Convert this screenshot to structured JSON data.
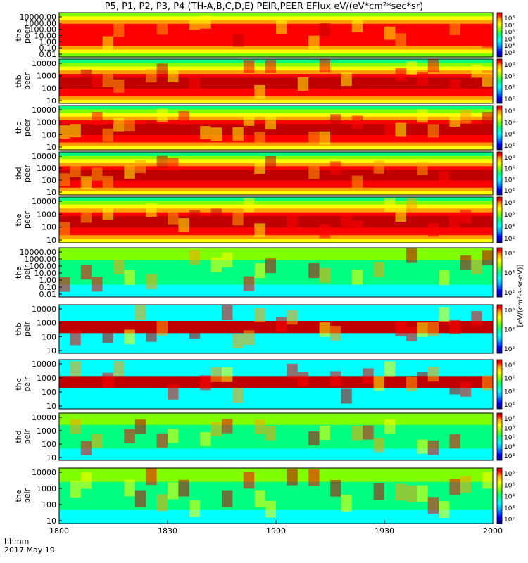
{
  "title": "P5, P1, P2, P3, P4 (TH-A,B,C,D,E) PEIR,PEER EFlux eV/(eV*cm²*sec*sr)",
  "time_axis": {
    "label": "hhmm",
    "date": "2017 May 19",
    "ticks": [
      "1800",
      "1830",
      "1900",
      "1930",
      "2000"
    ]
  },
  "colorbar_label": "[eV/(cm²-s-sr-eV)]",
  "colors": {
    "scale": [
      "#000080",
      "#0000ff",
      "#00a0ff",
      "#00ffff",
      "#00ff80",
      "#80ff00",
      "#ffff00",
      "#ffa000",
      "#ff0000",
      "#c00000"
    ],
    "sensor_trace": "#000000",
    "frame": "#000000"
  },
  "chart_data": [
    {
      "type": "heatmap",
      "probe": "tha",
      "product": "peer",
      "ylabel": [
        "tha",
        "peer"
      ],
      "yticks": [
        "10000.00",
        "1000.00",
        "100.00",
        "10.00",
        "1.00",
        "0.10",
        "0.01"
      ],
      "cb_ticks": [
        "10⁸",
        "10⁷",
        "10⁶",
        "10⁵",
        "10⁴",
        "10³"
      ]
    },
    {
      "type": "heatmap",
      "probe": "thb",
      "product": "peer",
      "ylabel": [
        "thb",
        "peer"
      ],
      "yticks": [
        "10000",
        "1000",
        "100",
        "10"
      ],
      "cb_ticks": [
        "10⁸",
        "10⁶",
        "10⁴",
        "10²"
      ]
    },
    {
      "type": "heatmap",
      "probe": "thc",
      "product": "peer",
      "ylabel": [
        "thc",
        "peer"
      ],
      "yticks": [
        "10000",
        "1000",
        "100",
        "10"
      ],
      "cb_ticks": [
        "10⁸",
        "10⁶",
        "10⁴",
        "10²"
      ]
    },
    {
      "type": "heatmap",
      "probe": "thd",
      "product": "peer",
      "ylabel": [
        "thd",
        "peer"
      ],
      "yticks": [
        "10000",
        "1000",
        "100",
        "10"
      ],
      "cb_ticks": [
        "10⁸",
        "10⁶",
        "10⁴",
        "10²"
      ]
    },
    {
      "type": "heatmap",
      "probe": "the",
      "product": "peer",
      "ylabel": [
        "the",
        "peer"
      ],
      "yticks": [
        "10000",
        "1000",
        "100",
        "10"
      ],
      "cb_ticks": [
        "10⁸",
        "10⁶",
        "10⁴",
        "10²"
      ]
    },
    {
      "type": "heatmap",
      "probe": "tha",
      "product": "peir",
      "ylabel": [
        "tha",
        "peir"
      ],
      "yticks": [
        "10000.00",
        "1000.00",
        "100.00",
        "10.00",
        "1.00",
        "0.10",
        "0.01"
      ],
      "cb_ticks": [
        "10⁶",
        "10⁴",
        "10²"
      ]
    },
    {
      "type": "heatmap",
      "probe": "thb",
      "product": "peir",
      "ylabel": [
        "thb",
        "peir"
      ],
      "yticks": [
        "10000",
        "1000",
        "100",
        "10"
      ],
      "cb_ticks": [
        "10⁶",
        "10⁴",
        "10²"
      ]
    },
    {
      "type": "heatmap",
      "probe": "thc",
      "product": "peir",
      "ylabel": [
        "thc",
        "peir"
      ],
      "yticks": [
        "10000",
        "1000",
        "100",
        "10"
      ],
      "cb_ticks": [
        "10⁸",
        "10⁶",
        "10⁴",
        "10²"
      ]
    },
    {
      "type": "heatmap",
      "probe": "thd",
      "product": "peir",
      "ylabel": [
        "thd",
        "peir"
      ],
      "yticks": [
        "10000",
        "1000",
        "100",
        "10"
      ],
      "cb_ticks": [
        "10⁷",
        "10⁶",
        "10⁵",
        "10⁴",
        "10³"
      ]
    },
    {
      "type": "heatmap",
      "probe": "the",
      "product": "peir",
      "ylabel": [
        "the",
        "peir"
      ],
      "yticks": [
        "10000",
        "1000",
        "100",
        "10"
      ],
      "cb_ticks": [
        "10⁶",
        "10⁵",
        "10⁴",
        "10³",
        "10²"
      ]
    }
  ]
}
